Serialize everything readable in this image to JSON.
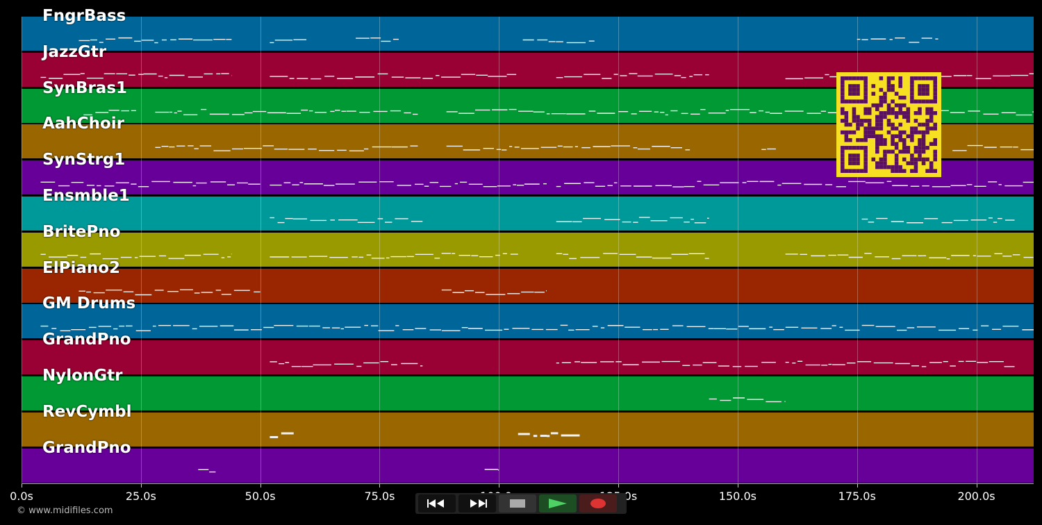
{
  "tracks": [
    {
      "name": "FngrBass",
      "color": "#006699"
    },
    {
      "name": "JazzGtr",
      "color": "#990033"
    },
    {
      "name": "SynBras1",
      "color": "#009933"
    },
    {
      "name": "AahChoir",
      "color": "#996600"
    },
    {
      "name": "SynStrg1",
      "color": "#660099"
    },
    {
      "name": "Ensmble1",
      "color": "#009999"
    },
    {
      "name": "BritePno",
      "color": "#999900"
    },
    {
      "name": "ElPiano2",
      "color": "#992600"
    },
    {
      "name": "GM Drums",
      "color": "#006699"
    },
    {
      "name": "GrandPno",
      "color": "#990033"
    },
    {
      "name": "NylonGtr",
      "color": "#009933"
    },
    {
      "name": "RevCymbl",
      "color": "#996600"
    },
    {
      "name": "GrandPno",
      "color": "#660099"
    }
  ],
  "time_axis": {
    "ticks": [
      "0.0s",
      "25.0s",
      "50.0s",
      "75.0s",
      "100.0s",
      "125.0s",
      "150.0s",
      "175.0s",
      "200.0s"
    ],
    "max_seconds": 212
  },
  "copyright": "© www.midifiles.com",
  "transport": {
    "rewind_icon": "rewind-icon",
    "forward_icon": "fast-forward-icon",
    "stop_icon": "stop-icon",
    "play_icon": "play-icon",
    "record_icon": "record-icon",
    "play_color": "#33aa44",
    "record_color": "#dd3333"
  },
  "qr_color": "#f7df21"
}
